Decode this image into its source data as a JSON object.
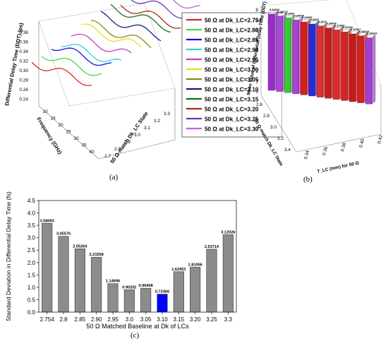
{
  "panel_a": {
    "caption": "(a)",
    "z_axis_label": "Differential Delay Time (DDT) (ps)",
    "z_ticks": [
      "0.38",
      "0.36",
      "0.34",
      "0.32",
      "0.30",
      "0.28",
      "0.26",
      "0.24"
    ],
    "freq_label": "Frequency (GHz)",
    "freq_ticks": [
      "10",
      "15",
      "20",
      "25",
      "30",
      "35",
      "40"
    ],
    "state_label": "50 Ω-match Dk_LC State",
    "state_ticks": [
      "3.3",
      "3.2",
      "3.1",
      "3.0",
      "2.9",
      "2.8",
      "2.7"
    ],
    "legend": [
      {
        "label": "50 Ω at Dk_LC=2.754",
        "color": "#d62728"
      },
      {
        "label": "50 Ω at Dk_LC=2.80",
        "color": "#4ad64a"
      },
      {
        "label": "50 Ω at Dk_LC=2.85",
        "color": "#1010e0"
      },
      {
        "label": "50 Ω at Dk_LC=2.90",
        "color": "#32d2d2"
      },
      {
        "label": "50 Ω at Dk_LC=2.95",
        "color": "#c040c0"
      },
      {
        "label": "50 Ω at Dk_LC=3.00",
        "color": "#e8e020"
      },
      {
        "label": "50 Ω at Dk_LC=3.05",
        "color": "#8a8a10"
      },
      {
        "label": "50 Ω at Dk_LC=3.10",
        "color": "#1a1a80"
      },
      {
        "label": "50 Ω at Dk_LC=3.15",
        "color": "#1a6e1a"
      },
      {
        "label": "50 Ω at Dk_LC=3.20",
        "color": "#a03010"
      },
      {
        "label": "50 Ω at Dk_LC=3.25",
        "color": "#6a3ab0"
      },
      {
        "label": "50 Ω at Dk_LC=3.30",
        "color": "#c060e0"
      }
    ]
  },
  "panel_b": {
    "caption": "(b)",
    "z_axis_label": "Mean Value of Differential Delay Time (DDT) (ps)",
    "z_ticks": [
      "8",
      "7",
      "6",
      "5",
      "4",
      "3",
      "2",
      "1",
      "0"
    ],
    "state_label": "50 Ω-match Dk_LC State",
    "state_ticks": [
      "2.6",
      "2.8",
      "3.0",
      "3.2",
      "3.4"
    ],
    "x_label": "T_LC (mm) for 50 Ω",
    "x_ticks": [
      "0.34",
      "0.36",
      "0.38",
      "0.40",
      "0.42"
    ],
    "bars": [
      {
        "value": "8.34032",
        "color": "#9a2cc8"
      },
      {
        "value": "8.34072",
        "color": "#a64ad6"
      },
      {
        "value": "8.3404",
        "color": "#3ac83a"
      },
      {
        "value": "8.34065",
        "color": "#b040d0"
      },
      {
        "value": "8.34005",
        "color": "#d21f1f"
      },
      {
        "value": "8.3445",
        "color": "#2a2ad8"
      },
      {
        "value": "8.3712",
        "color": "#e03030"
      },
      {
        "value": "8.34406",
        "color": "#c81e1e"
      },
      {
        "value": "8.37085",
        "color": "#e02a2a"
      },
      {
        "value": "8.37683",
        "color": "#d42424"
      },
      {
        "value": "8.37907",
        "color": "#c81a1a"
      },
      {
        "value": "8.34828",
        "color": "#d42020"
      },
      {
        "value": "8.34029",
        "color": "#a040d0"
      }
    ]
  },
  "chart_data": {
    "type": "bar",
    "title": "",
    "caption": "(c)",
    "xlabel": "50 Ω Matched Baseline at Dk of LCs",
    "ylabel": "Standard Deviation in Differential Delay Time (fs)",
    "ylim": [
      0,
      4.5
    ],
    "yticks": [
      "0.0",
      "0.5",
      "1.0",
      "1.5",
      "2.0",
      "2.5",
      "3.0",
      "3.5",
      "4.0",
      "4.5"
    ],
    "categories": [
      "2.754",
      "2.8",
      "2.85",
      "2.90",
      "2.95",
      "3.0",
      "3.05",
      "3.10",
      "3.15",
      "3.20",
      "3.25",
      "3.3"
    ],
    "values": [
      3.58093,
      3.05576,
      2.55264,
      2.21558,
      1.14696,
      0.90202,
      0.96408,
      0.72466,
      1.62953,
      1.81056,
      2.53714,
      3.12026
    ],
    "labels": [
      "3.58093",
      "3.05576",
      "2.55264",
      "2.21558",
      "1.14696",
      "0.90202",
      "0.96408",
      "0.72466",
      "1.62953",
      "1.81056",
      "2.53714",
      "3.12026"
    ],
    "bar_color": "#8c8c8c",
    "highlight_index": 7,
    "highlight_color": "#0000ff",
    "grid": false
  }
}
